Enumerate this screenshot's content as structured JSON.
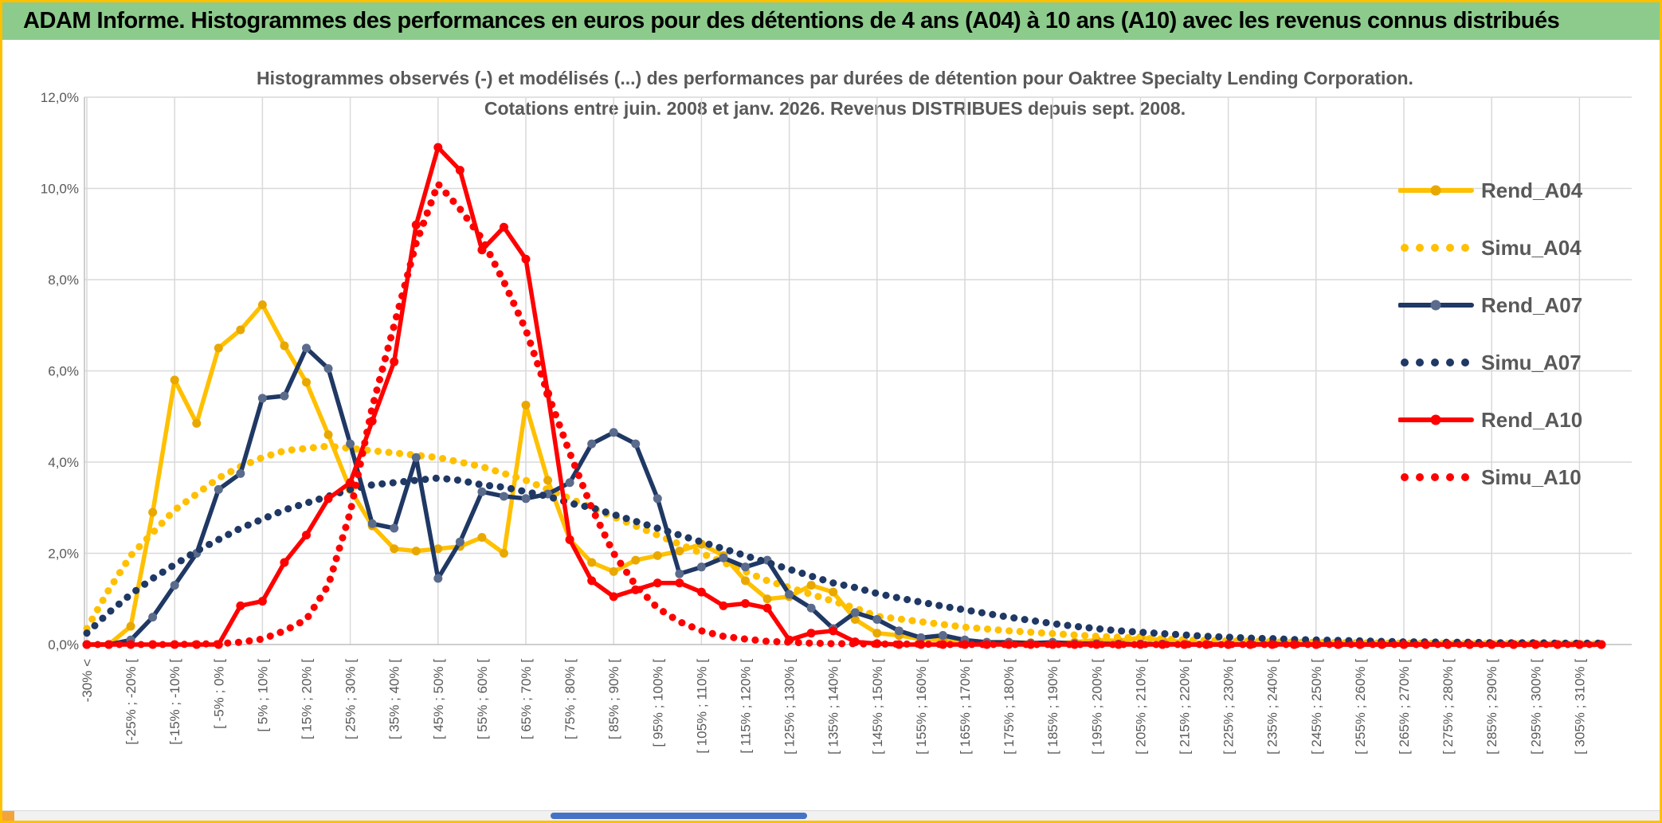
{
  "header": {
    "title": "ADAM Informe. Histogrammes des performances en euros pour des détentions de 4 ans (A04) à 10 ans (A10) avec les revenus connus distribués",
    "bg_color": "#8CCB8C"
  },
  "colors": {
    "gold": "#FFC000",
    "navy": "#1F3864",
    "red": "#FF0000",
    "grid": "#D9D9D9",
    "axis": "#BFBFBF",
    "text": "#595959",
    "page_border": "#FFC000",
    "scroll_thumb": "#4472C4"
  },
  "chart_data": {
    "type": "line",
    "title_line1": "Histogrammes observés (-) et modélisés (...) des performances par durées de détention pour Oaktree Specialty Lending Corporation.",
    "title_line2": "Cotations entre juin. 2008 et janv. 2026. Revenus DISTRIBUES depuis sept. 2008.",
    "ylim": [
      0,
      12
    ],
    "ytick_step": 2,
    "ytick_labels": [
      "0,0%",
      "2,0%",
      "4,0%",
      "6,0%",
      "8,0%",
      "10,0%",
      "12,0%"
    ],
    "grid": true,
    "legend_position": "right",
    "n_bins": 70,
    "bins_per_label": 2,
    "x_bin_labels": [
      "-30% <",
      "[-25% ; -20% [",
      "[-15% ; -10% [",
      "[ -5% ; 0% [",
      "[ 5% ; 10% [",
      "[ 15% ; 20% [",
      "[ 25% ; 30% [",
      "[ 35% ; 40% [",
      "[ 45% ; 50% [",
      "[ 55% ; 60% [",
      "[ 65% ; 70% [",
      "[ 75% ; 80% [",
      "[ 85% ; 90% [",
      "[ 95% ; 100% [",
      "[ 105% ; 110% [",
      "[ 115% ; 120% [",
      "[ 125% ; 130% [",
      "[ 135% ; 140% [",
      "[ 145% ; 150% [",
      "[ 155% ; 160% [",
      "[ 165% ; 170% [",
      "[ 175% ; 180% [",
      "[ 185% ; 190% [",
      "[ 195% ; 200% [",
      "[ 205% ; 210% [",
      "[ 215% ; 220% [",
      "[ 225% ; 230% [",
      "[ 235% ; 240% [",
      "[ 245% ; 250% [",
      "[ 255% ; 260% [",
      "[ 265% ; 270% [",
      "[ 275% ; 280% [",
      "[ 285% ; 290% [",
      "[ 295% ; 300% [",
      "[ 305% ; 310% ["
    ],
    "series": [
      {
        "name": "Rend_A04",
        "color": "#FFC000",
        "style": "solid",
        "marker": true,
        "marker_color": "#E8A800",
        "values": [
          0,
          0,
          0.4,
          2.9,
          5.8,
          4.85,
          6.5,
          6.9,
          7.45,
          6.55,
          5.75,
          4.6,
          3.4,
          2.6,
          2.1,
          2.05,
          2.1,
          2.15,
          2.35,
          2.0,
          5.25,
          3.6,
          2.3,
          1.8,
          1.6,
          1.85,
          1.95,
          2.05,
          2.2,
          1.95,
          1.4,
          1.0,
          1.05,
          1.3,
          1.15,
          0.55,
          0.25,
          0.2,
          0.12,
          0.1,
          0.08,
          0.05,
          0.05,
          0.04,
          0.03,
          0.05,
          0.1,
          0.08,
          0.15,
          0.1,
          0.05,
          0.03,
          0.02,
          0.02,
          0.01,
          0,
          0,
          0,
          0,
          0,
          0,
          0,
          0,
          0,
          0,
          0,
          0,
          0,
          0,
          0
        ]
      },
      {
        "name": "Simu_A04",
        "color": "#FFC000",
        "style": "dotted",
        "marker": false,
        "values": [
          0.35,
          1.2,
          1.95,
          2.45,
          2.95,
          3.3,
          3.65,
          3.9,
          4.1,
          4.25,
          4.3,
          4.35,
          4.3,
          4.25,
          4.2,
          4.15,
          4.1,
          4.0,
          3.9,
          3.75,
          3.6,
          3.4,
          3.2,
          3.0,
          2.8,
          2.6,
          2.4,
          2.2,
          2.0,
          1.8,
          1.6,
          1.4,
          1.25,
          1.1,
          0.95,
          0.8,
          0.62,
          0.56,
          0.5,
          0.44,
          0.38,
          0.34,
          0.3,
          0.27,
          0.24,
          0.21,
          0.18,
          0.16,
          0.14,
          0.12,
          0.1,
          0.09,
          0.08,
          0.07,
          0.06,
          0.05,
          0.05,
          0.04,
          0.04,
          0.03,
          0.03,
          0.03,
          0.02,
          0.02,
          0.02,
          0.02,
          0.01,
          0.01,
          0.01,
          0.01
        ]
      },
      {
        "name": "Rend_A07",
        "color": "#1F3864",
        "style": "solid",
        "marker": true,
        "marker_color": "#5A6B8C",
        "values": [
          0,
          0,
          0.1,
          0.6,
          1.3,
          2.0,
          3.4,
          3.75,
          5.4,
          5.45,
          6.5,
          6.05,
          4.4,
          2.65,
          2.55,
          4.1,
          1.45,
          2.25,
          3.35,
          3.25,
          3.2,
          3.3,
          3.55,
          4.4,
          4.65,
          4.4,
          3.2,
          1.55,
          1.7,
          1.9,
          1.7,
          1.85,
          1.1,
          0.8,
          0.35,
          0.7,
          0.55,
          0.3,
          0.15,
          0.2,
          0.1,
          0.05,
          0.05,
          0.03,
          0.05,
          0.02,
          0.02,
          0.01,
          0.01,
          0.01,
          0,
          0,
          0,
          0,
          0.01,
          0,
          0,
          0,
          0,
          0,
          0,
          0,
          0,
          0,
          0,
          0,
          0,
          0,
          0,
          0
        ]
      },
      {
        "name": "Simu_A07",
        "color": "#1F3864",
        "style": "dotted",
        "marker": false,
        "values": [
          0.25,
          0.7,
          1.1,
          1.45,
          1.75,
          2.05,
          2.3,
          2.55,
          2.75,
          2.95,
          3.1,
          3.25,
          3.4,
          3.5,
          3.55,
          3.6,
          3.65,
          3.6,
          3.5,
          3.45,
          3.35,
          3.25,
          3.1,
          3.0,
          2.85,
          2.7,
          2.55,
          2.4,
          2.25,
          2.1,
          1.95,
          1.8,
          1.65,
          1.5,
          1.35,
          1.25,
          1.12,
          1.02,
          0.93,
          0.84,
          0.76,
          0.68,
          0.6,
          0.53,
          0.46,
          0.4,
          0.35,
          0.3,
          0.27,
          0.24,
          0.21,
          0.18,
          0.16,
          0.14,
          0.13,
          0.11,
          0.1,
          0.09,
          0.08,
          0.07,
          0.06,
          0.06,
          0.05,
          0.05,
          0.04,
          0.04,
          0.04,
          0.03,
          0.03,
          0.03
        ]
      },
      {
        "name": "Rend_A10",
        "color": "#FF0000",
        "style": "solid",
        "marker": true,
        "marker_color": "#FF0000",
        "values": [
          0,
          0,
          0,
          0,
          0,
          0,
          0,
          0.85,
          0.95,
          1.8,
          2.4,
          3.2,
          3.55,
          4.9,
          6.2,
          9.2,
          10.9,
          10.4,
          8.65,
          9.15,
          8.45,
          5.5,
          2.3,
          1.4,
          1.05,
          1.2,
          1.35,
          1.35,
          1.15,
          0.85,
          0.9,
          0.8,
          0.1,
          0.25,
          0.3,
          0.06,
          0.02,
          0,
          0,
          0,
          0,
          0,
          0,
          0,
          0,
          0,
          0,
          0,
          0,
          0,
          0,
          0,
          0,
          0,
          0,
          0,
          0,
          0,
          0,
          0,
          0,
          0,
          0,
          0,
          0,
          0,
          0,
          0,
          0,
          0
        ]
      },
      {
        "name": "Simu_A10",
        "color": "#FF0000",
        "style": "dotted",
        "marker": false,
        "values": [
          0,
          0,
          0,
          0,
          0,
          0.01,
          0.02,
          0.05,
          0.12,
          0.3,
          0.55,
          1.3,
          2.9,
          5.2,
          7.0,
          8.8,
          10.1,
          9.55,
          8.9,
          7.95,
          6.9,
          5.5,
          4.2,
          3.0,
          2.0,
          1.3,
          0.8,
          0.5,
          0.3,
          0.18,
          0.12,
          0.07,
          0.05,
          0.03,
          0.02,
          0.02,
          0.01,
          0.01,
          0.01,
          0,
          0,
          0,
          0,
          0,
          0,
          0,
          0,
          0,
          0,
          0,
          0,
          0,
          0,
          0,
          0,
          0,
          0,
          0,
          0,
          0,
          0,
          0,
          0,
          0,
          0,
          0,
          0,
          0,
          0,
          0
        ]
      }
    ]
  }
}
